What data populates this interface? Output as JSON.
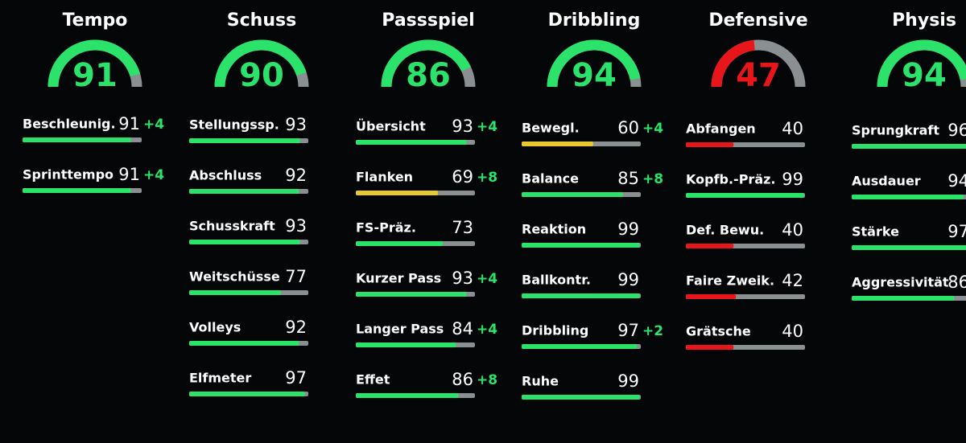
{
  "max": 100,
  "groups": [
    {
      "title": "Tempo",
      "value": 91,
      "color": "#2be36b",
      "attributes": [
        {
          "name": "Beschleunig.",
          "value": 91,
          "bonus": "+4",
          "color": "#2be36b"
        },
        {
          "name": "Sprinttempo",
          "value": 91,
          "bonus": "+4",
          "color": "#2be36b"
        }
      ]
    },
    {
      "title": "Schuss",
      "value": 90,
      "color": "#2be36b",
      "attributes": [
        {
          "name": "Stellungssp.",
          "value": 93,
          "color": "#2be36b"
        },
        {
          "name": "Abschluss",
          "value": 92,
          "color": "#2be36b"
        },
        {
          "name": "Schusskraft",
          "value": 93,
          "color": "#2be36b"
        },
        {
          "name": "Weitschüsse",
          "value": 77,
          "color": "#2be36b"
        },
        {
          "name": "Volleys",
          "value": 92,
          "color": "#2be36b"
        },
        {
          "name": "Elfmeter",
          "value": 97,
          "color": "#2be36b"
        }
      ]
    },
    {
      "title": "Passspiel",
      "value": 86,
      "color": "#2be36b",
      "attributes": [
        {
          "name": "Übersicht",
          "value": 93,
          "bonus": "+4",
          "color": "#2be36b"
        },
        {
          "name": "Flanken",
          "value": 69,
          "bonus": "+8",
          "color": "#e8c832"
        },
        {
          "name": "FS-Präz.",
          "value": 73,
          "color": "#2be36b"
        },
        {
          "name": "Kurzer Pass",
          "value": 93,
          "bonus": "+4",
          "color": "#2be36b"
        },
        {
          "name": "Langer Pass",
          "value": 84,
          "bonus": "+4",
          "color": "#2be36b"
        },
        {
          "name": "Effet",
          "value": 86,
          "bonus": "+8",
          "color": "#2be36b"
        }
      ]
    },
    {
      "title": "Dribbling",
      "value": 94,
      "color": "#2be36b",
      "attributes": [
        {
          "name": "Bewegl.",
          "value": 60,
          "bonus": "+4",
          "color": "#e8c832"
        },
        {
          "name": "Balance",
          "value": 85,
          "bonus": "+8",
          "color": "#2be36b"
        },
        {
          "name": "Reaktion",
          "value": 99,
          "color": "#2be36b"
        },
        {
          "name": "Ballkontr.",
          "value": 99,
          "color": "#2be36b"
        },
        {
          "name": "Dribbling",
          "value": 97,
          "bonus": "+2",
          "color": "#2be36b"
        },
        {
          "name": "Ruhe",
          "value": 99,
          "color": "#2be36b"
        }
      ]
    },
    {
      "title": "Defensive",
      "value": 47,
      "color": "#e8161b",
      "attributes": [
        {
          "name": "Abfangen",
          "value": 40,
          "color": "#e8161b"
        },
        {
          "name": "Kopfb.-Präz.",
          "value": 99,
          "color": "#2be36b"
        },
        {
          "name": "Def. Bewu.",
          "value": 40,
          "color": "#e8161b"
        },
        {
          "name": "Faire Zweik.",
          "value": 42,
          "color": "#e8161b"
        },
        {
          "name": "Grätsche",
          "value": 40,
          "color": "#e8161b"
        }
      ]
    },
    {
      "title": "Physis",
      "value": 94,
      "color": "#2be36b",
      "attributes": [
        {
          "name": "Sprungkraft",
          "value": 96,
          "color": "#2be36b"
        },
        {
          "name": "Ausdauer",
          "value": 94,
          "color": "#2be36b"
        },
        {
          "name": "Stärke",
          "value": 97,
          "color": "#2be36b"
        },
        {
          "name": "Aggressivität",
          "value": 86,
          "color": "#2be36b"
        }
      ]
    }
  ]
}
